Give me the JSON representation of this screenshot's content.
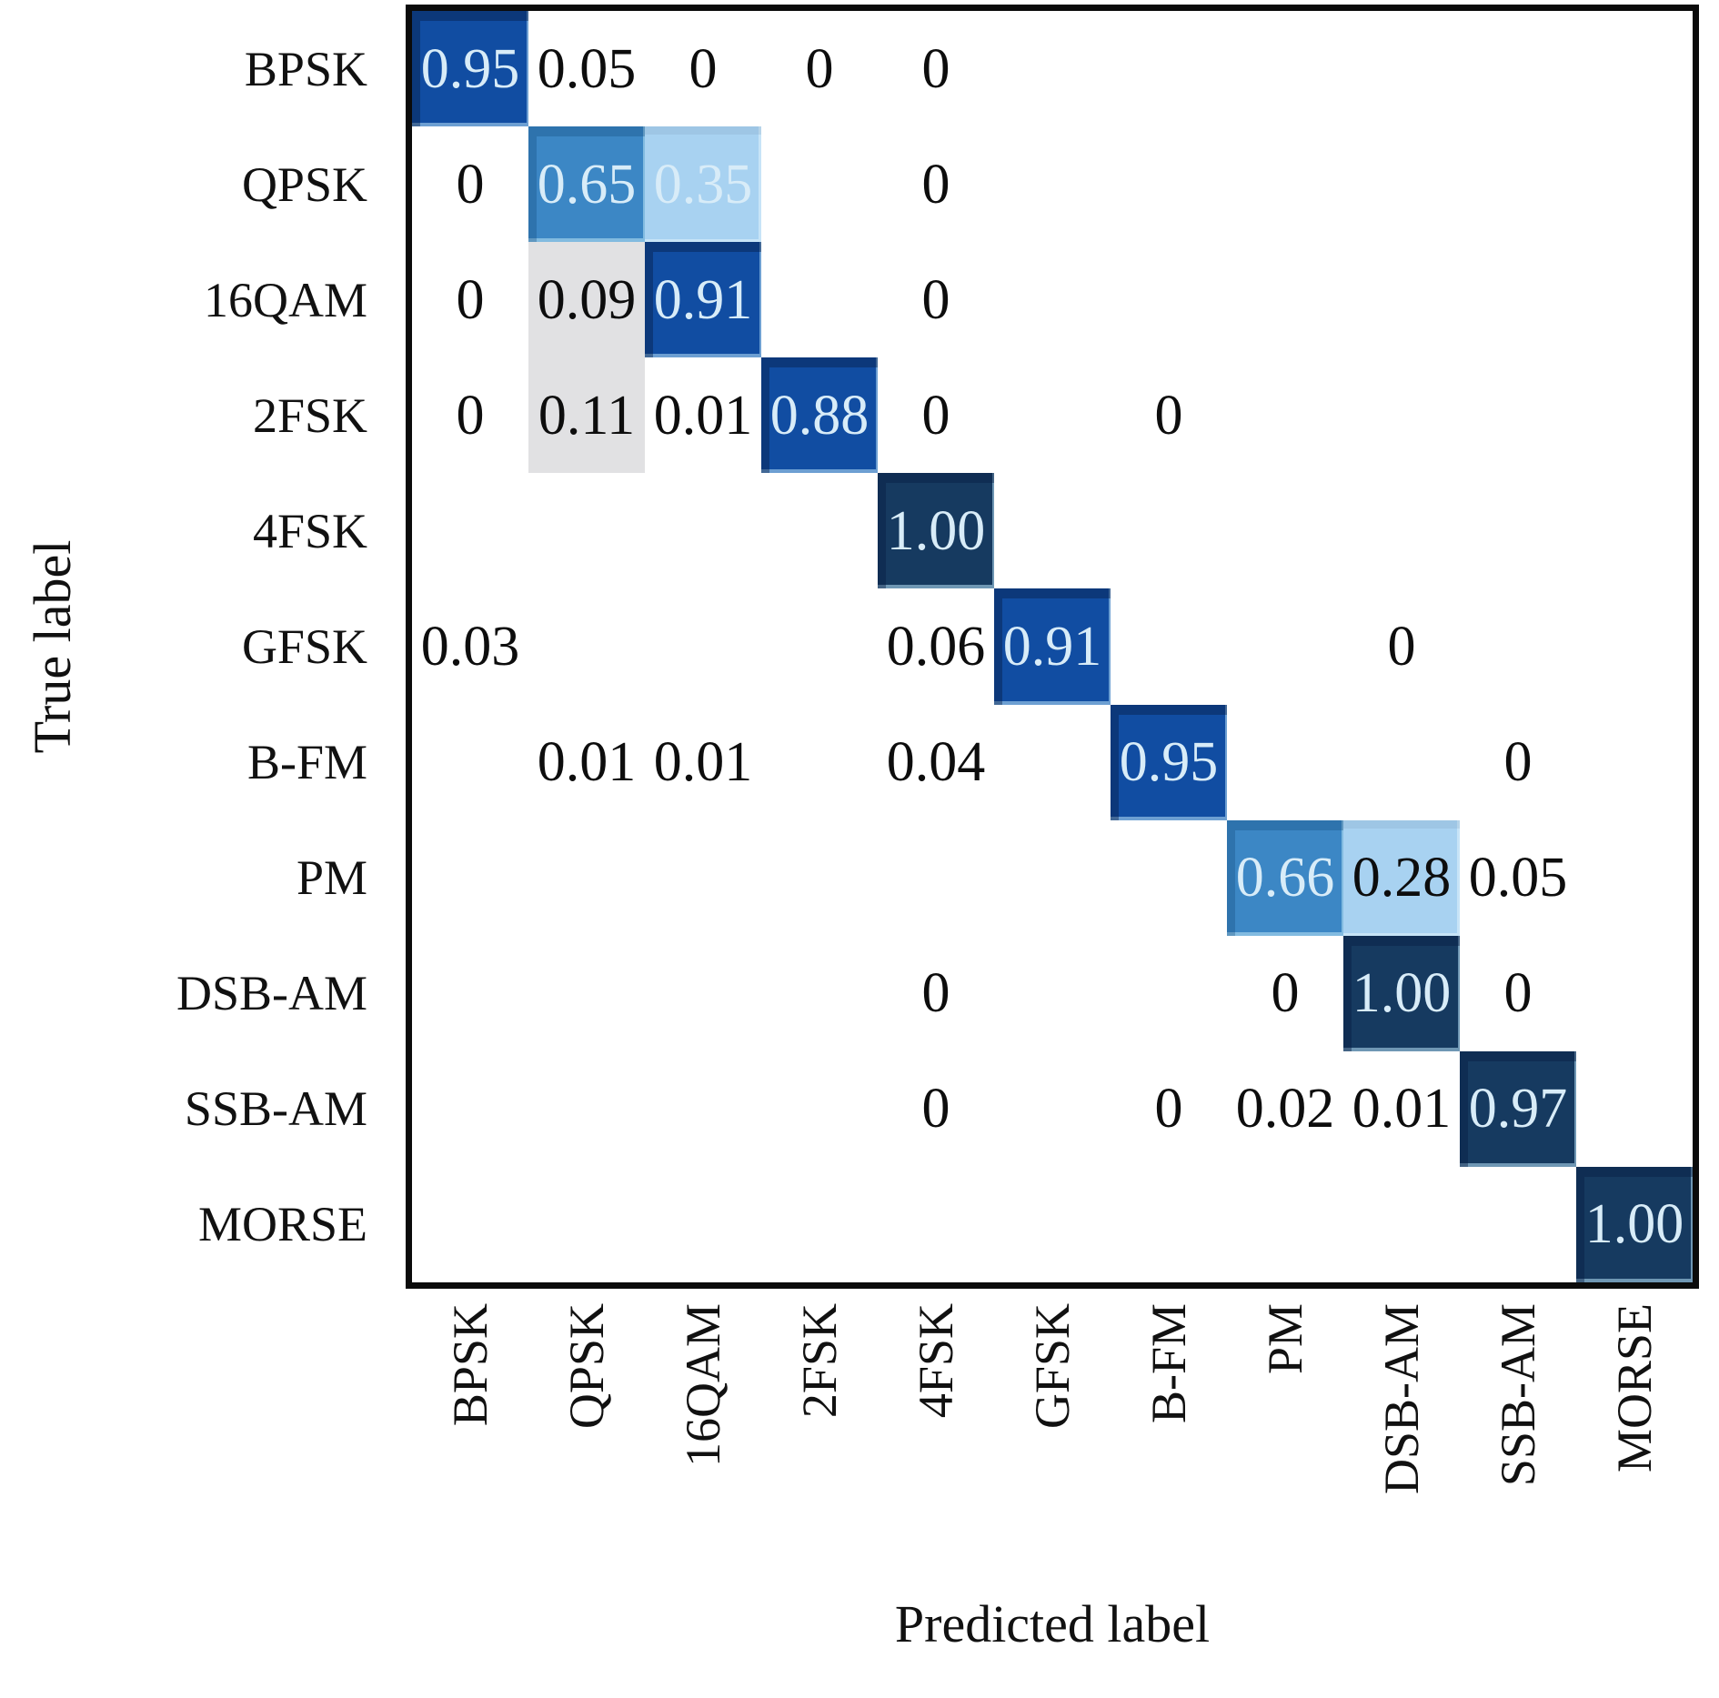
{
  "figure": {
    "kind": "confusion-matrix",
    "x_axis_title": "Predicted label",
    "y_axis_title": "True label"
  },
  "colors": {
    "cell_navy": "#163a60",
    "cell_royal": "#114da2",
    "cell_medium_blue": "#3c87c5",
    "cell_light_blue": "#a8d2f1",
    "cell_light_gray": "#e1e1e3",
    "cell_white": "#ffffff",
    "text_light": "#d8ecf8",
    "text_dark": "#0d0d0d",
    "axis_border": "#0b0b0b"
  },
  "chart_data": {
    "type": "heatmap",
    "title": "",
    "xlabel": "Predicted label",
    "ylabel": "True label",
    "colormap": "Blues",
    "value_range": [
      0,
      1
    ],
    "grid": false,
    "legend": "none",
    "x_tick_labels": [
      "BPSK",
      "QPSK",
      "16QAM",
      "2FSK",
      "4FSK",
      "GFSK",
      "B-FM",
      "PM",
      "DSB-AM",
      "SSB-AM",
      "MORSE"
    ],
    "y_tick_labels": [
      "BPSK",
      "QPSK",
      "16QAM",
      "2FSK",
      "4FSK",
      "GFSK",
      "B-FM",
      "PM",
      "DSB-AM",
      "SSB-AM",
      "MORSE"
    ],
    "matrix": [
      [
        "0.95",
        "0.05",
        "0",
        "0",
        "0",
        null,
        null,
        null,
        null,
        null,
        null
      ],
      [
        "0",
        "0.65",
        "0.35",
        null,
        "0",
        null,
        null,
        null,
        null,
        null,
        null
      ],
      [
        "0",
        "0.09",
        "0.91",
        null,
        "0",
        null,
        null,
        null,
        null,
        null,
        null
      ],
      [
        "0",
        "0.11",
        "0.01",
        "0.88",
        "0",
        null,
        "0",
        null,
        null,
        null,
        null
      ],
      [
        null,
        null,
        null,
        null,
        "1.00",
        null,
        null,
        null,
        null,
        null,
        null
      ],
      [
        "0.03",
        null,
        null,
        null,
        "0.06",
        "0.91",
        null,
        null,
        "0",
        null,
        null
      ],
      [
        null,
        "0.01",
        "0.01",
        null,
        "0.04",
        null,
        "0.95",
        null,
        null,
        "0",
        null
      ],
      [
        null,
        null,
        null,
        null,
        null,
        null,
        null,
        "0.66",
        "0.28",
        "0.05",
        null
      ],
      [
        null,
        null,
        null,
        null,
        "0",
        null,
        null,
        "0",
        "1.00",
        "0",
        null
      ],
      [
        null,
        null,
        null,
        null,
        "0",
        null,
        "0",
        "0.02",
        "0.01",
        "0.97",
        null
      ],
      [
        null,
        null,
        null,
        null,
        null,
        null,
        null,
        null,
        null,
        null,
        "1.00"
      ]
    ]
  }
}
